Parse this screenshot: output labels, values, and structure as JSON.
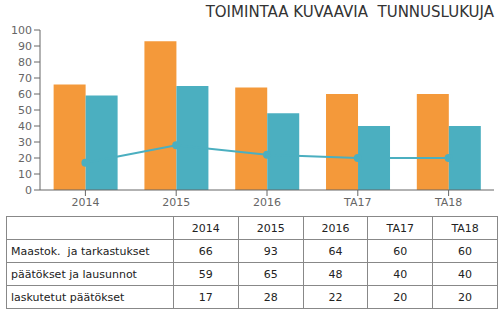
{
  "chart_data": {
    "type": "bar",
    "title": "TOIMINTAA KUVAAVIA  TUNNUSLUKUJA",
    "categories": [
      "2014",
      "2015",
      "2016",
      "TA17",
      "TA18"
    ],
    "series": [
      {
        "name": "Maastok.  ja tarkastukset",
        "type": "bar",
        "color": "#F4993A",
        "values": [
          66,
          93,
          64,
          60,
          60
        ]
      },
      {
        "name": "päätökset ja lausunnot",
        "type": "bar",
        "color": "#4BAFC0",
        "values": [
          59,
          65,
          48,
          40,
          40
        ]
      },
      {
        "name": "laskutetut päätökset",
        "type": "line",
        "color": "#4BAFC0",
        "marker": "circle",
        "values": [
          17,
          28,
          22,
          20,
          20
        ]
      }
    ],
    "ylim": [
      0,
      100
    ],
    "yticks": [
      0,
      10,
      20,
      30,
      40,
      50,
      60,
      70,
      80,
      90,
      100
    ],
    "grid": false
  }
}
